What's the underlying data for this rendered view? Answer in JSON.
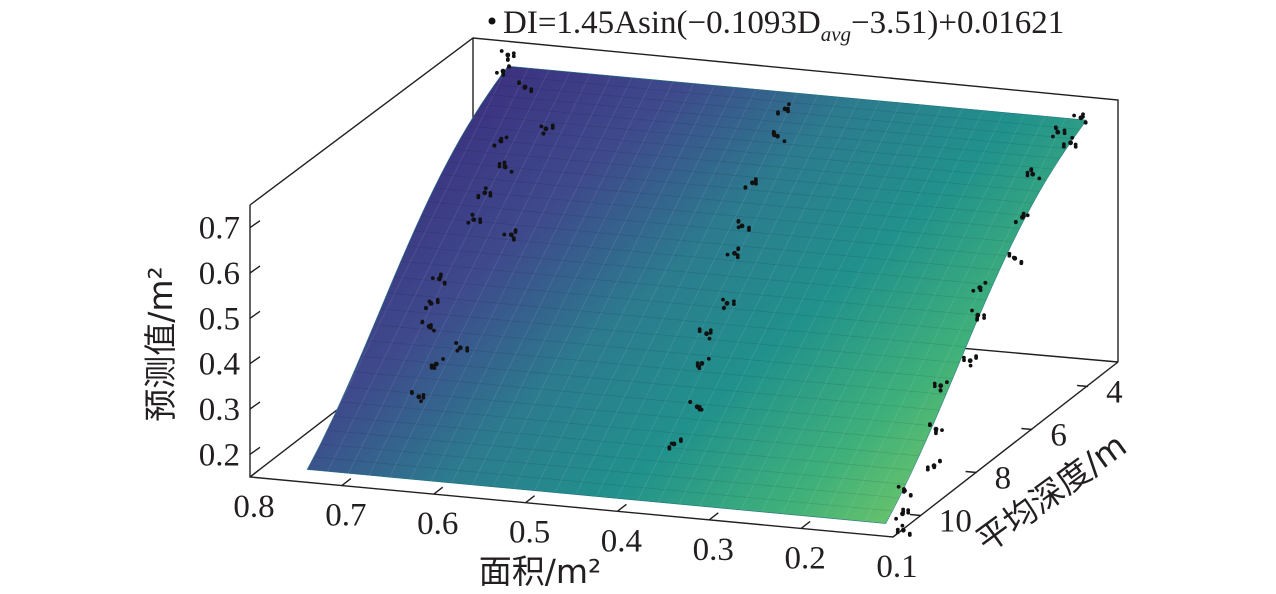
{
  "chart_data": {
    "type": "scatter",
    "title": "DI=1.45Asin(−0.1093D",
    "title_sub": "avg",
    "title_tail": "−3.51)+0.01621",
    "fit": {
      "formula": "DI=1.45Asin(-0.1093D_avg-3.51)+0.01621",
      "a": 1.45,
      "b": -0.1093,
      "c": -3.51,
      "d": 0.01621
    },
    "x_axis": {
      "label": "面积/m²",
      "lim": [
        0.1,
        0.8
      ],
      "ticks": [
        "0.8",
        "0.7",
        "0.6",
        "0.5",
        "0.4",
        "0.3",
        "0.2",
        "0.1"
      ]
    },
    "y_axis": {
      "label": "平均深度/m",
      "lim": [
        3,
        11
      ],
      "ticks": [
        "4",
        "6",
        "8",
        "10"
      ]
    },
    "z_axis": {
      "label": "预测值/m²",
      "lim": [
        0.15,
        0.75
      ],
      "ticks": [
        "0.2",
        "0.3",
        "0.4",
        "0.5",
        "0.6",
        "0.7"
      ]
    },
    "colormap": [
      "#3b2e7e",
      "#3e4a8c",
      "#2c7b8e",
      "#21918c",
      "#3fb07a",
      "#6cc46a"
    ],
    "grid": false,
    "series": [
      {
        "values": [
          [
            0.75,
            3.4,
            0.73
          ],
          [
            0.74,
            3.9,
            0.72
          ],
          [
            0.71,
            4.1,
            0.7
          ],
          [
            0.7,
            5.3,
            0.64
          ],
          [
            0.68,
            5.8,
            0.61
          ],
          [
            0.69,
            6.2,
            0.57
          ],
          [
            0.69,
            6.6,
            0.53
          ],
          [
            0.7,
            7.5,
            0.44
          ],
          [
            0.7,
            7.8,
            0.4
          ],
          [
            0.69,
            8.2,
            0.37
          ],
          [
            0.67,
            8.6,
            0.31
          ],
          [
            0.68,
            8.9,
            0.25
          ],
          [
            0.66,
            5.0,
            0.66
          ],
          [
            0.64,
            6.9,
            0.52
          ],
          [
            0.65,
            8.4,
            0.34
          ],
          [
            0.43,
            4.0,
            0.7
          ],
          [
            0.42,
            4.6,
            0.67
          ],
          [
            0.42,
            5.5,
            0.61
          ],
          [
            0.41,
            6.2,
            0.55
          ],
          [
            0.4,
            6.8,
            0.52
          ],
          [
            0.39,
            7.4,
            0.44
          ],
          [
            0.4,
            7.8,
            0.39
          ],
          [
            0.39,
            8.3,
            0.35
          ],
          [
            0.38,
            8.8,
            0.28
          ],
          [
            0.39,
            9.3,
            0.22
          ],
          [
            0.12,
            3.6,
            0.72
          ],
          [
            0.13,
            4.1,
            0.71
          ],
          [
            0.11,
            4.3,
            0.7
          ],
          [
            0.13,
            5.0,
            0.66
          ],
          [
            0.12,
            5.7,
            0.6
          ],
          [
            0.11,
            6.3,
            0.54
          ],
          [
            0.13,
            6.9,
            0.5
          ],
          [
            0.12,
            7.3,
            0.46
          ],
          [
            0.11,
            7.9,
            0.39
          ],
          [
            0.13,
            8.3,
            0.35
          ],
          [
            0.12,
            8.8,
            0.28
          ],
          [
            0.11,
            9.2,
            0.22
          ],
          [
            0.13,
            9.6,
            0.18
          ],
          [
            0.12,
            10.0,
            0.15
          ],
          [
            0.11,
            10.3,
            0.13
          ]
        ]
      }
    ]
  }
}
